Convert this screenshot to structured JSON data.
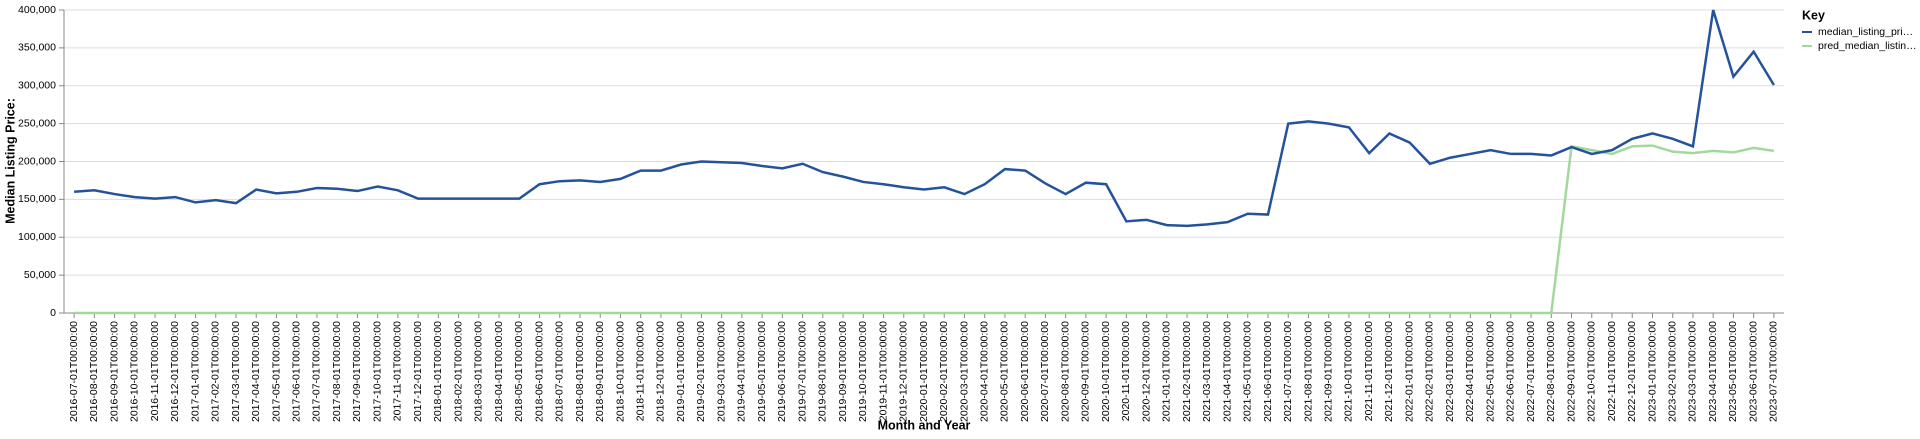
{
  "chart_data": {
    "type": "line",
    "x_label": "Month and Year",
    "y_label": "Median Listing Price:",
    "legend_title": "Key",
    "legend_position": "right",
    "grid": true,
    "categories": [
      "2016-07-01T00:00:00",
      "2016-08-01T00:00:00",
      "2016-09-01T00:00:00",
      "2016-10-01T00:00:00",
      "2016-11-01T00:00:00",
      "2016-12-01T00:00:00",
      "2017-01-01T00:00:00",
      "2017-02-01T00:00:00",
      "2017-03-01T00:00:00",
      "2017-04-01T00:00:00",
      "2017-05-01T00:00:00",
      "2017-06-01T00:00:00",
      "2017-07-01T00:00:00",
      "2017-08-01T00:00:00",
      "2017-09-01T00:00:00",
      "2017-10-01T00:00:00",
      "2017-11-01T00:00:00",
      "2017-12-01T00:00:00",
      "2018-01-01T00:00:00",
      "2018-02-01T00:00:00",
      "2018-03-01T00:00:00",
      "2018-04-01T00:00:00",
      "2018-05-01T00:00:00",
      "2018-06-01T00:00:00",
      "2018-07-01T00:00:00",
      "2018-08-01T00:00:00",
      "2018-09-01T00:00:00",
      "2018-10-01T00:00:00",
      "2018-11-01T00:00:00",
      "2018-12-01T00:00:00",
      "2019-01-01T00:00:00",
      "2019-02-01T00:00:00",
      "2019-03-01T00:00:00",
      "2019-04-01T00:00:00",
      "2019-05-01T00:00:00",
      "2019-06-01T00:00:00",
      "2019-07-01T00:00:00",
      "2019-08-01T00:00:00",
      "2019-09-01T00:00:00",
      "2019-10-01T00:00:00",
      "2019-11-01T00:00:00",
      "2019-12-01T00:00:00",
      "2020-01-01T00:00:00",
      "2020-02-01T00:00:00",
      "2020-03-01T00:00:00",
      "2020-04-01T00:00:00",
      "2020-05-01T00:00:00",
      "2020-06-01T00:00:00",
      "2020-07-01T00:00:00",
      "2020-08-01T00:00:00",
      "2020-09-01T00:00:00",
      "2020-10-01T00:00:00",
      "2020-11-01T00:00:00",
      "2020-12-01T00:00:00",
      "2021-01-01T00:00:00",
      "2021-02-01T00:00:00",
      "2021-03-01T00:00:00",
      "2021-04-01T00:00:00",
      "2021-05-01T00:00:00",
      "2021-06-01T00:00:00",
      "2021-07-01T00:00:00",
      "2021-08-01T00:00:00",
      "2021-09-01T00:00:00",
      "2021-10-01T00:00:00",
      "2021-11-01T00:00:00",
      "2021-12-01T00:00:00",
      "2022-01-01T00:00:00",
      "2022-02-01T00:00:00",
      "2022-03-01T00:00:00",
      "2022-04-01T00:00:00",
      "2022-05-01T00:00:00",
      "2022-06-01T00:00:00",
      "2022-07-01T00:00:00",
      "2022-08-01T00:00:00",
      "2022-09-01T00:00:00",
      "2022-10-01T00:00:00",
      "2022-11-01T00:00:00",
      "2022-12-01T00:00:00",
      "2023-01-01T00:00:00",
      "2023-02-01T00:00:00",
      "2023-03-01T00:00:00",
      "2023-04-01T00:00:00",
      "2023-05-01T00:00:00",
      "2023-06-01T00:00:00",
      "2023-07-01T00:00:00"
    ],
    "series": [
      {
        "name": "median_listing_pri…",
        "color": "#24529b",
        "values": [
          160000,
          162000,
          157000,
          153000,
          151000,
          153000,
          146000,
          149000,
          145000,
          163000,
          158000,
          160000,
          165000,
          164000,
          161000,
          167000,
          162000,
          151000,
          151000,
          151000,
          151000,
          151000,
          151000,
          170000,
          174000,
          175000,
          173000,
          177000,
          188000,
          188000,
          196000,
          200000,
          199000,
          198000,
          194000,
          191000,
          197000,
          186000,
          180000,
          173000,
          170000,
          166000,
          163000,
          166000,
          157000,
          170000,
          190000,
          188000,
          171000,
          157000,
          172000,
          170000,
          121000,
          123000,
          116000,
          115000,
          117000,
          120000,
          131000,
          130000,
          250000,
          253000,
          250000,
          245000,
          211000,
          237000,
          225000,
          197000,
          205000,
          210000,
          215000,
          210000,
          210000,
          208000,
          219000,
          210000,
          215000,
          230000,
          237000,
          230000,
          220000,
          400000,
          312000,
          345000,
          301000
        ]
      },
      {
        "name": "pred_median_listin…",
        "color": "#a1d99b",
        "values": [
          0,
          0,
          0,
          0,
          0,
          0,
          0,
          0,
          0,
          0,
          0,
          0,
          0,
          0,
          0,
          0,
          0,
          0,
          0,
          0,
          0,
          0,
          0,
          0,
          0,
          0,
          0,
          0,
          0,
          0,
          0,
          0,
          0,
          0,
          0,
          0,
          0,
          0,
          0,
          0,
          0,
          0,
          0,
          0,
          0,
          0,
          0,
          0,
          0,
          0,
          0,
          0,
          0,
          0,
          0,
          0,
          0,
          0,
          0,
          0,
          0,
          0,
          0,
          0,
          0,
          0,
          0,
          0,
          0,
          0,
          0,
          0,
          0,
          0,
          220000,
          215000,
          210000,
          220000,
          221000,
          213000,
          211000,
          214000,
          212000,
          218000,
          214000
        ]
      }
    ],
    "ylim": [
      0,
      400000
    ],
    "yticks": [
      0,
      {
        "value": 50000,
        "label": "50,000"
      },
      {
        "value": 100000,
        "label": "100,000"
      },
      {
        "value": 150000,
        "label": "150,000"
      },
      {
        "value": 200000,
        "label": "200,000"
      },
      {
        "value": 250000,
        "label": "250,000"
      },
      {
        "value": 300000,
        "label": "300,000"
      },
      {
        "value": 350000,
        "label": "350,000"
      },
      {
        "value": 400000,
        "label": "400,000"
      }
    ]
  }
}
